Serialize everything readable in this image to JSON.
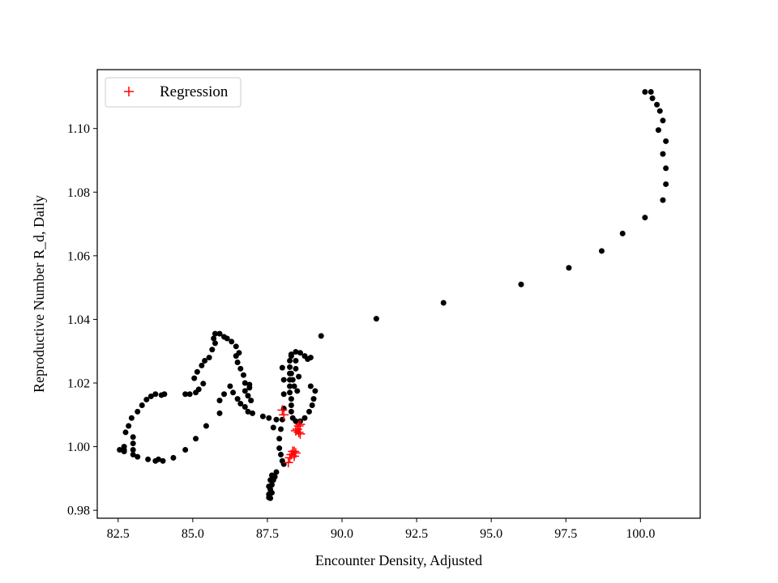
{
  "chart_data": {
    "type": "scatter",
    "title": "",
    "xlabel": "Encounter Density, Adjusted",
    "ylabel": "Reproductive Number R_d, Daily",
    "xlim": [
      81.8,
      102.0
    ],
    "ylim": [
      0.9775,
      1.1185
    ],
    "xticks": [
      82.5,
      85.0,
      87.5,
      90.0,
      92.5,
      95.0,
      97.5,
      100.0
    ],
    "xtick_labels": [
      "82.5",
      "85.0",
      "87.5",
      "90.0",
      "92.5",
      "95.0",
      "97.5",
      "100.0"
    ],
    "yticks": [
      0.98,
      1.0,
      1.02,
      1.04,
      1.06,
      1.08,
      1.1
    ],
    "ytick_labels": [
      "0.98",
      "1.00",
      "1.02",
      "1.04",
      "1.06",
      "1.08",
      "1.10"
    ],
    "grid": false,
    "legend": {
      "placement": "top-left",
      "entries": [
        "Regression"
      ]
    },
    "series": [
      {
        "marker": "dot",
        "color": "#000000",
        "points": [
          [
            100.15,
            1.1115
          ],
          [
            100.35,
            1.1115
          ],
          [
            100.4,
            1.1095
          ],
          [
            100.55,
            1.1075
          ],
          [
            100.65,
            1.1055
          ],
          [
            100.75,
            1.1025
          ],
          [
            100.6,
            1.0995
          ],
          [
            100.85,
            1.096
          ],
          [
            100.75,
            1.092
          ],
          [
            100.85,
            1.0875
          ],
          [
            100.85,
            1.0825
          ],
          [
            100.75,
            1.0775
          ],
          [
            100.15,
            1.072
          ],
          [
            99.4,
            1.067
          ],
          [
            98.7,
            1.0615
          ],
          [
            97.6,
            1.0562
          ],
          [
            96.0,
            1.051
          ],
          [
            93.4,
            1.0452
          ],
          [
            91.15,
            1.0402
          ],
          [
            89.3,
            1.0348
          ],
          [
            88.95,
            1.028
          ],
          [
            88.85,
            1.0275
          ],
          [
            88.75,
            1.0285
          ],
          [
            88.6,
            1.0295
          ],
          [
            88.45,
            1.0298
          ],
          [
            88.3,
            1.029
          ],
          [
            88.25,
            1.027
          ],
          [
            88.25,
            1.025
          ],
          [
            88.25,
            1.023
          ],
          [
            88.25,
            1.021
          ],
          [
            88.25,
            1.019
          ],
          [
            88.25,
            1.017
          ],
          [
            88.3,
            1.015
          ],
          [
            88.3,
            1.013
          ],
          [
            88.3,
            1.011
          ],
          [
            88.35,
            1.009
          ],
          [
            88.45,
            1.008
          ],
          [
            88.6,
            1.008
          ],
          [
            88.75,
            1.009
          ],
          [
            88.9,
            1.011
          ],
          [
            89.0,
            1.013
          ],
          [
            89.05,
            1.015
          ],
          [
            89.1,
            1.0175
          ],
          [
            88.95,
            1.019
          ],
          [
            88.45,
            1.0245
          ],
          [
            88.3,
            1.023
          ],
          [
            88.35,
            1.021
          ],
          [
            88.4,
            1.019
          ],
          [
            88.5,
            1.0175
          ],
          [
            88.55,
            1.022
          ],
          [
            88.45,
            1.027
          ],
          [
            88.3,
            1.0285
          ],
          [
            88.0,
            1.0248
          ],
          [
            88.05,
            1.021
          ],
          [
            88.05,
            1.0165
          ],
          [
            88.05,
            1.012
          ],
          [
            88.0,
            1.0085
          ],
          [
            87.95,
            1.0055
          ],
          [
            87.9,
            1.0025
          ],
          [
            87.9,
            0.9995
          ],
          [
            87.95,
            0.9975
          ],
          [
            88.0,
            0.9955
          ],
          [
            88.05,
            0.9945
          ],
          [
            87.8,
            0.992
          ],
          [
            87.75,
            0.9905
          ],
          [
            87.7,
            0.9895
          ],
          [
            87.65,
            0.988
          ],
          [
            87.6,
            0.9865
          ],
          [
            87.55,
            0.985
          ],
          [
            87.6,
            0.9838
          ],
          [
            87.55,
            0.9875
          ],
          [
            87.6,
            0.9895
          ],
          [
            87.65,
            0.991
          ],
          [
            87.65,
            0.9855
          ],
          [
            87.55,
            0.984
          ],
          [
            87.8,
            1.0085
          ],
          [
            87.7,
            1.006
          ],
          [
            87.55,
            1.009
          ],
          [
            87.35,
            1.0095
          ],
          [
            87.0,
            1.0105
          ],
          [
            86.85,
            1.011
          ],
          [
            86.75,
            1.0125
          ],
          [
            86.6,
            1.0135
          ],
          [
            86.5,
            1.015
          ],
          [
            86.35,
            1.017
          ],
          [
            86.25,
            1.019
          ],
          [
            86.05,
            1.0165
          ],
          [
            85.9,
            1.0145
          ],
          [
            85.9,
            1.0105
          ],
          [
            85.45,
            1.0065
          ],
          [
            85.1,
            1.0025
          ],
          [
            84.75,
            0.999
          ],
          [
            84.35,
            0.9965
          ],
          [
            84.0,
            0.9955
          ],
          [
            83.85,
            0.996
          ],
          [
            83.75,
            0.9955
          ],
          [
            83.5,
            0.996
          ],
          [
            83.15,
            0.9968
          ],
          [
            83.0,
            0.9975
          ],
          [
            83.0,
            0.999
          ],
          [
            83.0,
            1.001
          ],
          [
            83.0,
            1.003
          ],
          [
            82.7,
            0.9985
          ],
          [
            82.55,
            0.999
          ],
          [
            82.7,
            0.999
          ],
          [
            82.7,
            1.0
          ],
          [
            82.75,
            1.0045
          ],
          [
            82.85,
            1.0065
          ],
          [
            82.95,
            1.009
          ],
          [
            83.15,
            1.011
          ],
          [
            83.3,
            1.013
          ],
          [
            83.45,
            1.0148
          ],
          [
            83.6,
            1.0158
          ],
          [
            83.75,
            1.0165
          ],
          [
            83.95,
            1.0162
          ],
          [
            84.05,
            1.0165
          ],
          [
            84.75,
            1.0165
          ],
          [
            84.9,
            1.0165
          ],
          [
            85.1,
            1.017
          ],
          [
            85.2,
            1.018
          ],
          [
            85.35,
            1.0198
          ],
          [
            85.15,
            1.0235
          ],
          [
            85.05,
            1.0215
          ],
          [
            85.3,
            1.0255
          ],
          [
            85.4,
            1.027
          ],
          [
            85.55,
            1.028
          ],
          [
            85.65,
            1.0305
          ],
          [
            85.75,
            1.0325
          ],
          [
            85.7,
            1.034
          ],
          [
            85.75,
            1.0355
          ],
          [
            85.9,
            1.0355
          ],
          [
            86.05,
            1.0345
          ],
          [
            86.15,
            1.034
          ],
          [
            86.3,
            1.033
          ],
          [
            86.45,
            1.0315
          ],
          [
            86.55,
            1.0295
          ],
          [
            86.45,
            1.0285
          ],
          [
            86.5,
            1.0265
          ],
          [
            86.6,
            1.0245
          ],
          [
            86.7,
            1.0225
          ],
          [
            86.75,
            1.02
          ],
          [
            86.75,
            1.0175
          ],
          [
            86.85,
            1.016
          ],
          [
            86.95,
            1.0145
          ],
          [
            86.9,
            1.0185
          ],
          [
            86.9,
            1.0195
          ]
        ]
      },
      {
        "name": "Regression",
        "marker": "plus",
        "color": "#ff0000",
        "points": [
          [
            88.0,
            1.0115
          ],
          [
            88.05,
            1.01
          ],
          [
            88.55,
            1.0065
          ],
          [
            88.6,
            1.007
          ],
          [
            88.5,
            1.0055
          ],
          [
            88.45,
            1.005
          ],
          [
            88.55,
            1.0045
          ],
          [
            88.6,
            1.004
          ],
          [
            88.4,
            0.9985
          ],
          [
            88.35,
            0.9985
          ],
          [
            88.3,
            0.9975
          ],
          [
            88.45,
            0.998
          ],
          [
            88.4,
            0.997
          ],
          [
            88.25,
            0.9965
          ],
          [
            88.2,
            0.995
          ]
        ]
      }
    ]
  }
}
